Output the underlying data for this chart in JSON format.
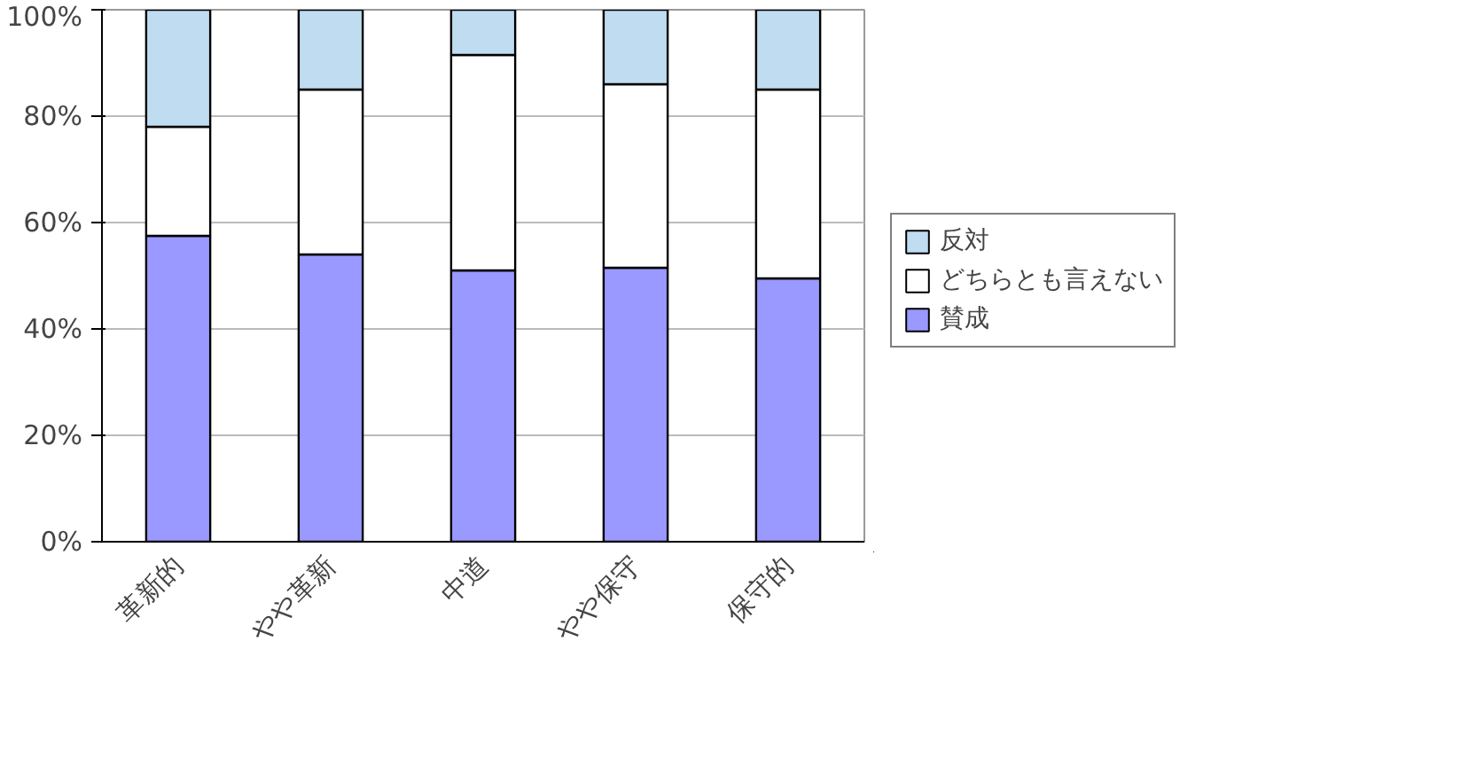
{
  "chart_data": {
    "type": "bar",
    "stacked": true,
    "categories": [
      "革新的",
      "やや革新",
      "中道",
      "やや保守",
      "保守的"
    ],
    "series": [
      {
        "name": "賛成",
        "color": "#9999ff",
        "values": [
          57.5,
          54,
          51,
          51.5,
          49.5
        ]
      },
      {
        "name": "どちらとも言えない",
        "color": "#ffffff",
        "values": [
          20.5,
          31,
          40.5,
          34.5,
          35.5
        ]
      },
      {
        "name": "反対",
        "color": "#c0dcf0",
        "values": [
          22,
          15,
          8.5,
          14,
          15
        ]
      }
    ],
    "ylim": [
      0,
      100
    ],
    "yticks": [
      {
        "value": 0,
        "label": "0%"
      },
      {
        "value": 20,
        "label": "20%"
      },
      {
        "value": 40,
        "label": "40%"
      },
      {
        "value": 60,
        "label": "60%"
      },
      {
        "value": 80,
        "label": "80%"
      },
      {
        "value": 100,
        "label": "100%"
      }
    ],
    "grid": "y",
    "legend": "right"
  }
}
